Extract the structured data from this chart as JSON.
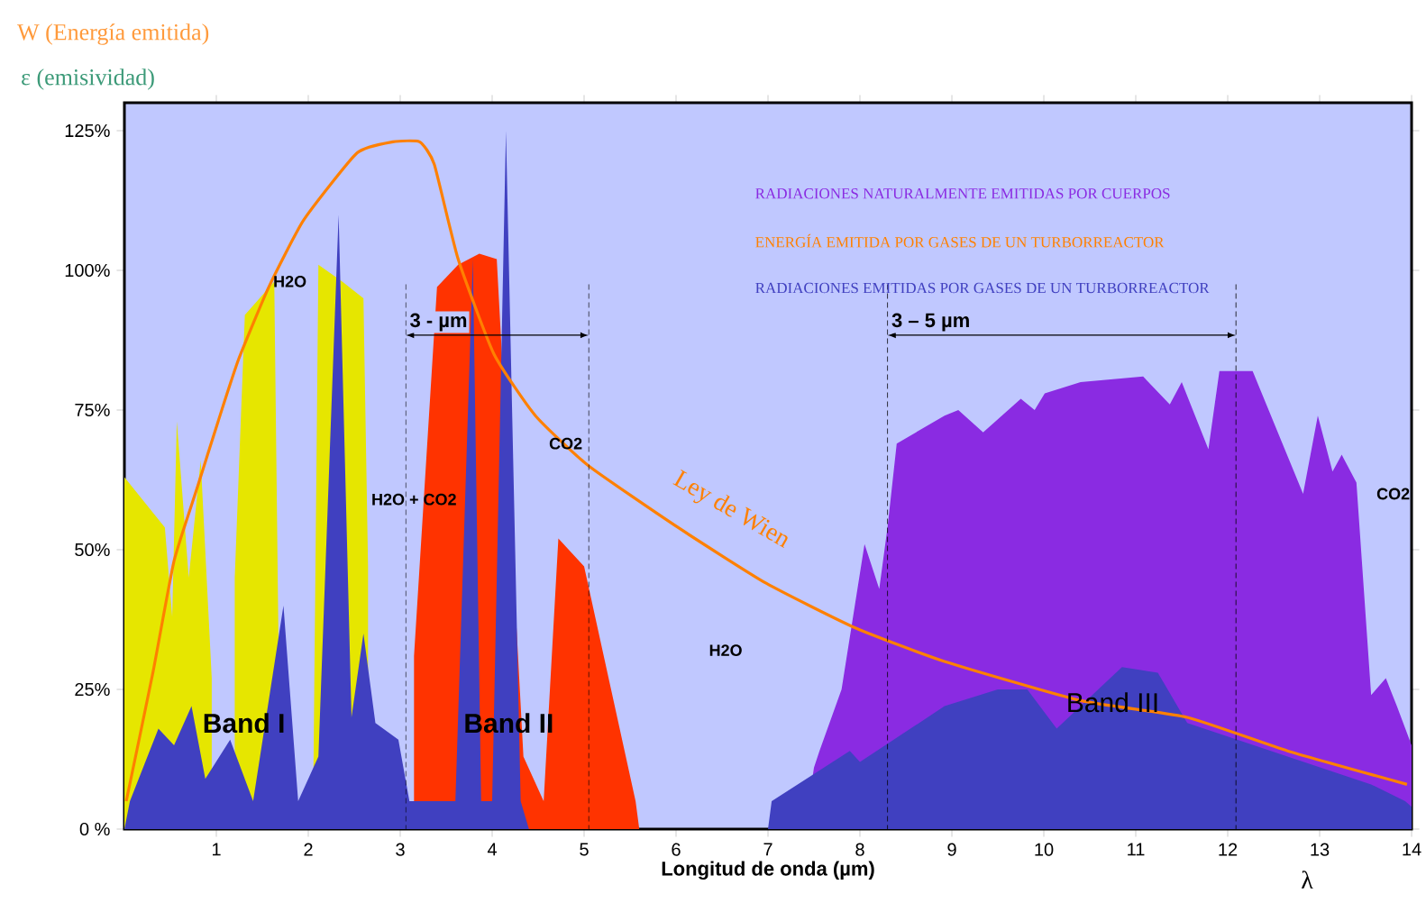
{
  "chart_data": {
    "type": "area",
    "title": "W (Energía emitida)",
    "ylabel": "ε (emisividad)",
    "xlabel": "Longitud de onda (µm)",
    "xlim": [
      0,
      14
    ],
    "ylim": [
      0,
      130
    ],
    "xticks": [
      1,
      2,
      3,
      4,
      5,
      6,
      7,
      8,
      9,
      10,
      11,
      12,
      13,
      14
    ],
    "yticks": [
      {
        "value": 0,
        "label": "0 %"
      },
      {
        "value": 25,
        "label": "25%"
      },
      {
        "value": 50,
        "label": "50%"
      },
      {
        "value": 75,
        "label": "75%"
      },
      {
        "value": 100,
        "label": "100%"
      },
      {
        "value": 125,
        "label": "125%"
      }
    ],
    "legend": "top right",
    "series": [
      {
        "color": "#e6e600",
        "x": [
          0,
          0.44,
          0.52,
          0.57,
          0.7,
          0.83,
          0.95
        ],
        "values": [
          63,
          54,
          38,
          73,
          45,
          66,
          27
        ]
      },
      {
        "color": "#e6e600",
        "x": [
          1.2,
          1.31,
          1.63,
          1.7,
          2.05,
          2.11,
          2.37,
          2.6,
          2.65
        ],
        "values": [
          45,
          92,
          98,
          0,
          0,
          101,
          98,
          95,
          47
        ]
      },
      {
        "color": "#ff3300",
        "x": [
          3.15,
          3.4,
          3.63,
          3.86,
          4.05,
          4.34,
          4.56,
          4.72,
          5.0,
          5.56,
          5.6
        ],
        "values": [
          31,
          97,
          101,
          103,
          102,
          13,
          5,
          52,
          47,
          5,
          0
        ]
      },
      {
        "name": "RADIACIONES NATURALMENTE EMITIDAS POR CUERPOS",
        "color": "#8a2be2",
        "x": [
          7.4,
          7.5,
          7.56,
          7.8,
          8.05,
          8.21,
          8.3,
          8.4,
          8.92,
          9.07,
          9.34,
          9.75,
          9.9,
          10.01,
          10.4,
          11.08,
          11.37,
          11.5,
          11.79,
          11.91,
          12.27,
          12.82,
          12.98,
          13.14,
          13.24,
          13.4,
          13.56,
          13.72,
          13.84,
          14.0
        ],
        "values": [
          0,
          11,
          14,
          25,
          51,
          43,
          54,
          69,
          74,
          75,
          71,
          77,
          75,
          78,
          80,
          81,
          76,
          80,
          68,
          82,
          82,
          60,
          74,
          64,
          67,
          62,
          24,
          27,
          22,
          15
        ]
      },
      {
        "name": "ENERGÍA EMITIDA POR GASES DE UN TURBORREACTOR",
        "type": "line",
        "color": "#ff8000",
        "x": [
          0.02,
          0.31,
          0.54,
          0.79,
          1.02,
          1.24,
          1.57,
          1.95,
          2.53,
          2.92,
          3.21,
          3.37,
          3.63,
          4.02,
          4.47,
          5.05,
          6.02,
          6.98,
          7.95,
          8.92,
          10.4,
          11.56,
          12.65,
          13.95
        ],
        "values": [
          5,
          28,
          48,
          61,
          73,
          84,
          97,
          109,
          121,
          123,
          123,
          119,
          102,
          85,
          74,
          65,
          54,
          44,
          36,
          30,
          23,
          20,
          14,
          8
        ]
      },
      {
        "name": "RADIACIONES EMITIDAS POR GASES DE UN TURBORREACTOR",
        "color": "#4040c0",
        "x": [
          0.0,
          0.06,
          0.37,
          0.54,
          0.73,
          0.88,
          1.15,
          1.4,
          1.73,
          1.89,
          2.11,
          2.33,
          2.47,
          2.6,
          2.73,
          2.98,
          3.1,
          3.6,
          3.79,
          3.88,
          4.0,
          4.15,
          4.31,
          4.4,
          7.0,
          7.04,
          7.89,
          8.0,
          8.92,
          9.5,
          9.82,
          10.14,
          10.85,
          11.24,
          11.56,
          13.56,
          13.93,
          14.0
        ],
        "values": [
          0,
          5,
          18,
          15,
          22,
          9,
          16,
          5,
          40,
          5,
          13,
          110,
          20,
          35,
          19,
          16,
          5,
          5,
          102,
          5,
          5,
          125,
          5,
          0,
          0,
          5,
          14,
          12,
          22,
          25,
          25,
          18,
          29,
          28,
          19,
          8,
          5,
          4
        ]
      }
    ],
    "ref_lines": [
      {
        "axis": "x",
        "value": 3.06,
        "label": "3 - µm"
      },
      {
        "axis": "x",
        "value": 5.05
      },
      {
        "axis": "x",
        "value": 8.3,
        "label": "3 – 5 µm"
      },
      {
        "axis": "x",
        "value": 12.09
      }
    ],
    "annotations": [
      "H2O",
      "H2O + CO2",
      "CO2",
      "H2O",
      "CO2",
      "Band I",
      "Band II",
      "Band III",
      "Ley de Wien",
      "λ"
    ]
  }
}
